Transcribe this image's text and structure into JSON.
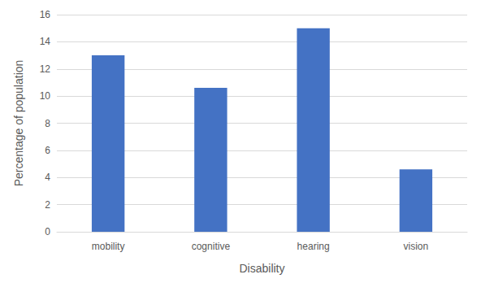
{
  "chart_data": {
    "type": "bar",
    "xlabel": "Disability",
    "ylabel": "Percentage of population",
    "categories": [
      "mobility",
      "cognitive",
      "hearing",
      "vision"
    ],
    "values": [
      13,
      10.6,
      15,
      4.6
    ],
    "color": "#4472c4",
    "ylim": [
      0,
      16
    ],
    "yticks": [
      0,
      2,
      4,
      6,
      8,
      10,
      12,
      14,
      16
    ],
    "grid": true
  }
}
